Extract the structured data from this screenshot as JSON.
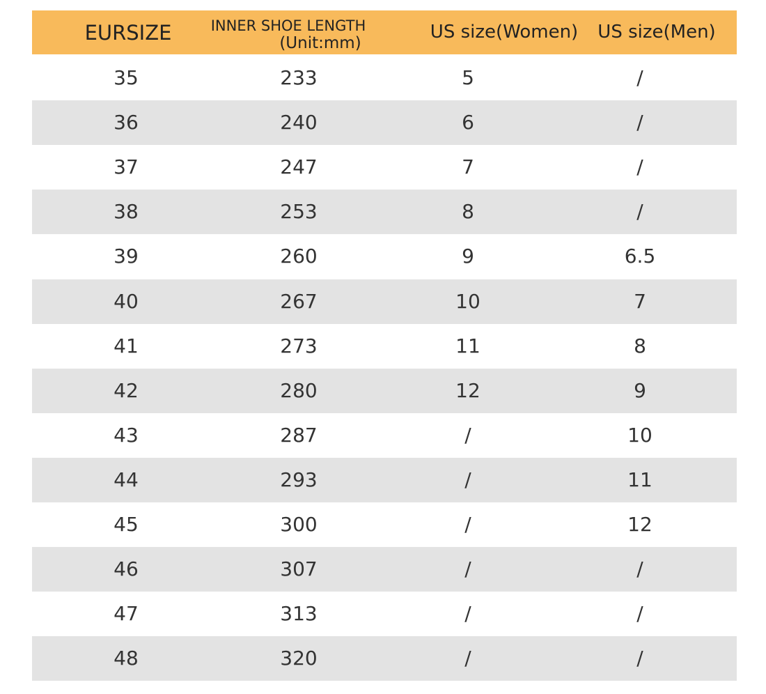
{
  "table": {
    "header": [
      "EURSIZE",
      "INNER SHOE LENGTH",
      "(Unit:mm)",
      "US size(Women)",
      "US size(Men)"
    ],
    "rows": [
      [
        35,
        233,
        5,
        "/"
      ],
      [
        36,
        240,
        6,
        "/"
      ],
      [
        37,
        247,
        7,
        "/"
      ],
      [
        38,
        253,
        8,
        "/"
      ],
      [
        39,
        260,
        9,
        6.5
      ],
      [
        40,
        267,
        10,
        7
      ],
      [
        41,
        273,
        11,
        8
      ],
      [
        42,
        280,
        12,
        9
      ],
      [
        43,
        287,
        "/",
        10
      ],
      [
        44,
        293,
        "/",
        11
      ],
      [
        45,
        300,
        "/",
        12
      ],
      [
        46,
        307,
        "/",
        "/"
      ],
      [
        47,
        313,
        "/",
        "/"
      ],
      [
        48,
        320,
        "/",
        "/"
      ]
    ]
  }
}
